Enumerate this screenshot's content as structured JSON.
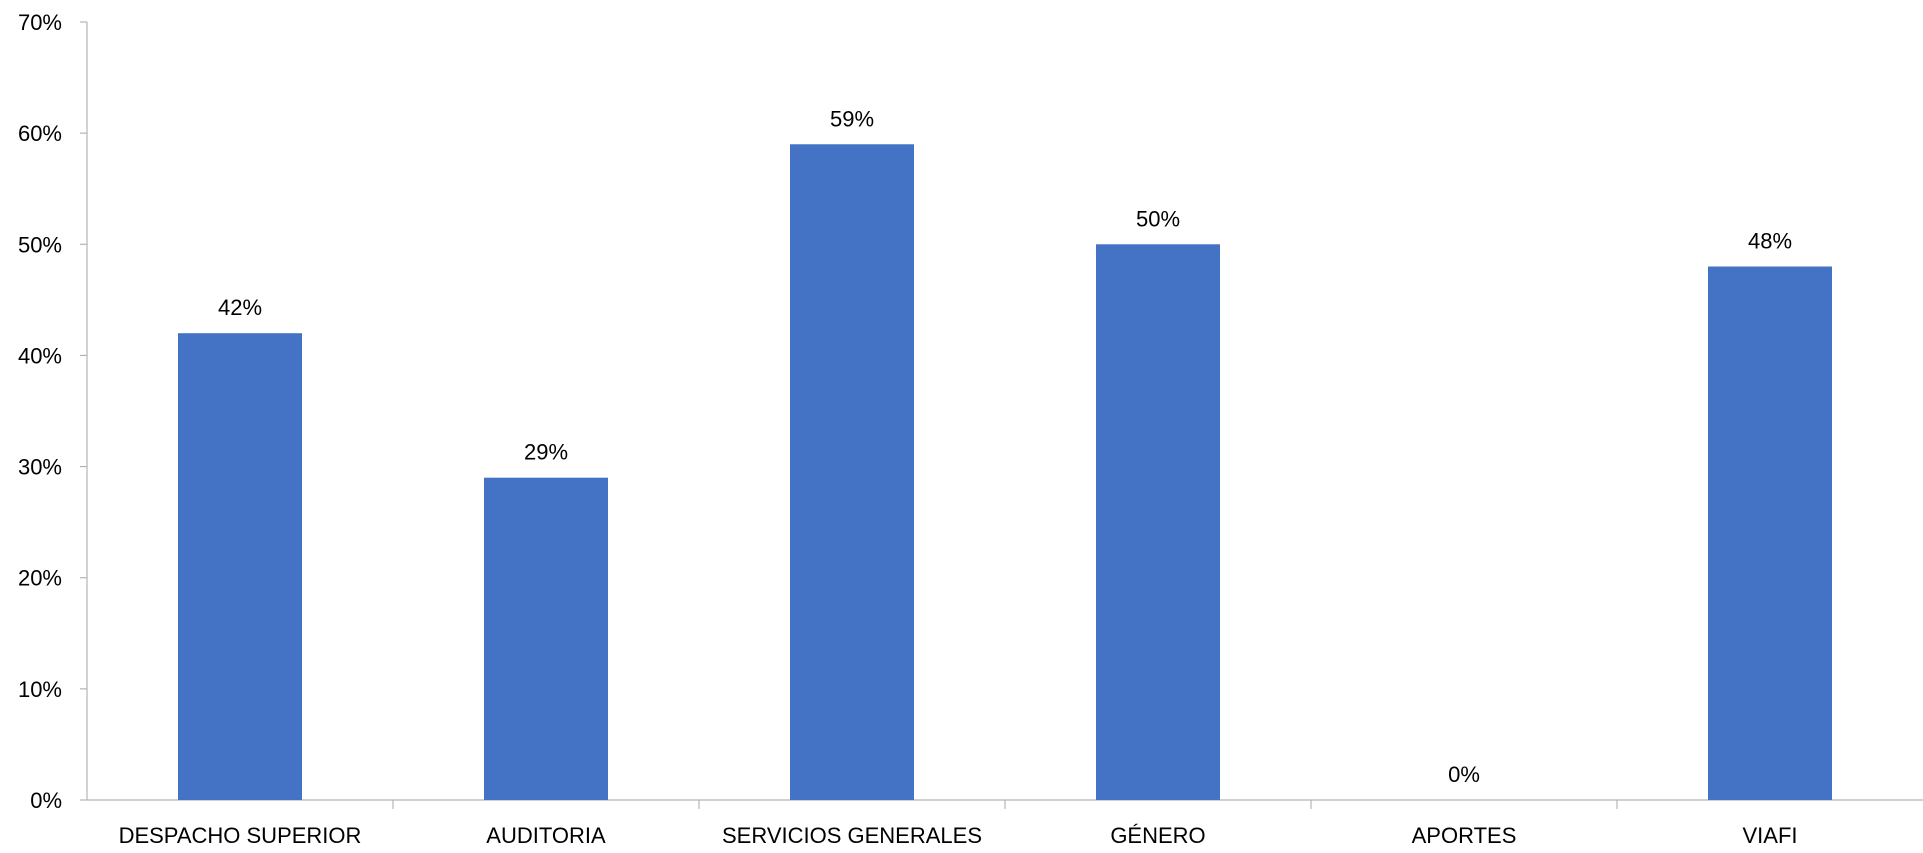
{
  "chart_data": {
    "type": "bar",
    "categories": [
      "DESPACHO SUPERIOR",
      "AUDITORIA",
      "SERVICIOS GENERALES",
      "GÉNERO",
      "APORTES",
      "VIAFI"
    ],
    "values": [
      0.42,
      0.29,
      0.59,
      0.5,
      0.0,
      0.48
    ],
    "data_labels": [
      "42%",
      "29%",
      "59%",
      "50%",
      "0%",
      "48%"
    ],
    "y_ticks": [
      0,
      0.1,
      0.2,
      0.3,
      0.4,
      0.5,
      0.6,
      0.7
    ],
    "y_tick_labels": [
      "0%",
      "10%",
      "20%",
      "30%",
      "40%",
      "50%",
      "60%",
      "70%"
    ],
    "ylim": [
      0,
      0.7
    ],
    "title": "",
    "xlabel": "",
    "ylabel": "",
    "grid": false,
    "legend": "none",
    "bar_color": "#4472C4"
  }
}
